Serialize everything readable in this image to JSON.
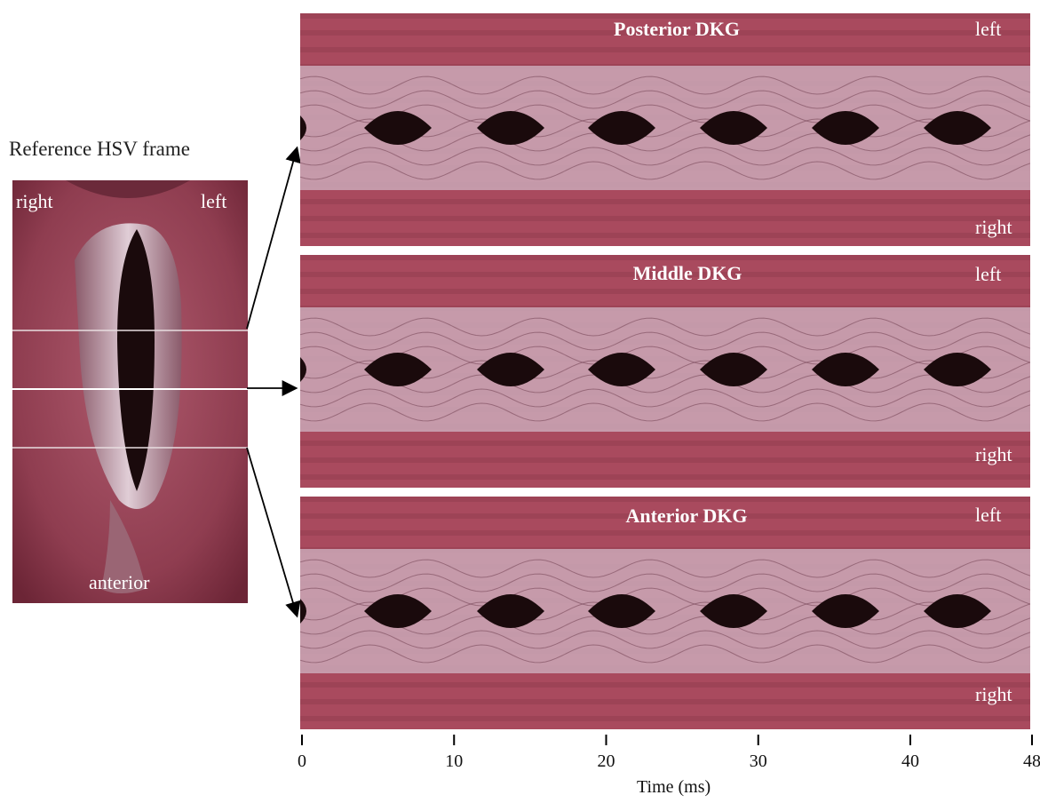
{
  "figure": {
    "reference": {
      "title": "Reference HSV frame",
      "label_right": "right",
      "label_left": "left",
      "label_anterior": "anterior"
    },
    "panels": [
      {
        "title": "Posterior DKG",
        "label_top": "left",
        "label_bottom": "right"
      },
      {
        "title": "Middle DKG",
        "label_top": "left",
        "label_bottom": "right"
      },
      {
        "title": "Anterior DKG",
        "label_top": "left",
        "label_bottom": "right"
      }
    ],
    "time_axis": {
      "label": "Time (ms)",
      "ticks": [
        "0",
        "10",
        "20",
        "30",
        "40",
        "48"
      ],
      "tick_values": [
        0,
        10,
        20,
        30,
        40,
        48
      ],
      "range": [
        0,
        48
      ]
    },
    "colors": {
      "tissue": "#a94a5e",
      "tissue_dark": "#7d2f40",
      "fold": "#c9a3b2",
      "glottis": "#1a0a0c"
    }
  }
}
